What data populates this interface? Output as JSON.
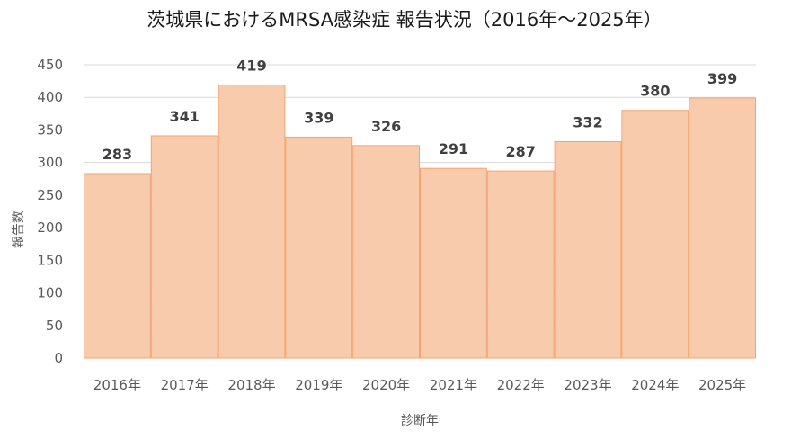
{
  "chart_data": {
    "type": "bar",
    "title": "茨城県におけるMRSA感染症 報告状況（2016年～2025年）",
    "xlabel": "診断年",
    "ylabel": "報告数",
    "categories": [
      "2016年",
      "2017年",
      "2018年",
      "2019年",
      "2020年",
      "2021年",
      "2022年",
      "2023年",
      "2024年",
      "2025年"
    ],
    "values": [
      283,
      341,
      419,
      339,
      326,
      291,
      287,
      332,
      380,
      399
    ],
    "ylim": [
      0,
      450
    ],
    "yticks": [
      0,
      50,
      100,
      150,
      200,
      250,
      300,
      350,
      400,
      450
    ],
    "grid": true,
    "legend": "none",
    "colors": {
      "bar_fill": "#F8CBAD",
      "bar_stroke": "#F4A46E",
      "grid": "#D9D9D9",
      "tick_text": "#595959",
      "label_text": "#404040"
    }
  }
}
